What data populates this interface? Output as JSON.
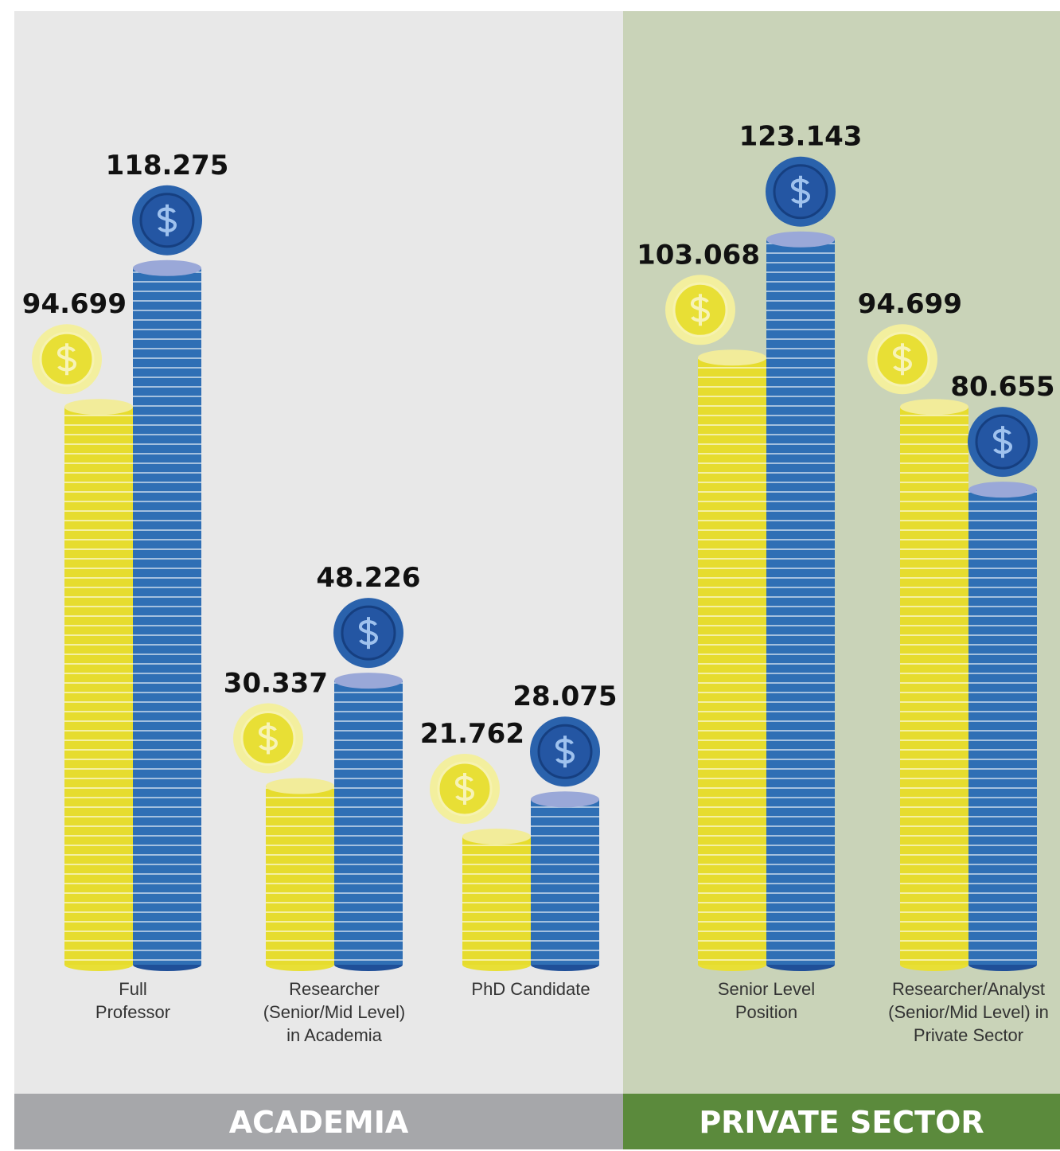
{
  "chart_data": [
    {
      "type": "bar",
      "title": "ACADEMIA",
      "categories": [
        "Full\nProfessor",
        "Researcher\n(Senior/Mid Level)\nin Academia",
        "PhD Candidate"
      ],
      "series": [
        {
          "color": "#e6dc2e",
          "values": [
            94699,
            30337,
            21762
          ],
          "value_labels": [
            "94.699",
            "30.337",
            "21.762"
          ]
        },
        {
          "color": "#2f6fb5",
          "values": [
            118275,
            48226,
            28075
          ],
          "value_labels": [
            "118.275",
            "48.226",
            "28.075"
          ]
        }
      ]
    },
    {
      "type": "bar",
      "title": "PRIVATE SECTOR",
      "categories": [
        "Senior Level\nPosition",
        "Researcher/Analyst\n(Senior/Mid Level) in\nPrivate Sector"
      ],
      "series": [
        {
          "color": "#e6dc2e",
          "values": [
            103068,
            94699
          ],
          "value_labels": [
            "103.068",
            "94.699"
          ]
        },
        {
          "color": "#2f6fb5",
          "values": [
            123143,
            80655
          ],
          "value_labels": [
            "123.143",
            "80.655"
          ]
        }
      ]
    }
  ]
}
